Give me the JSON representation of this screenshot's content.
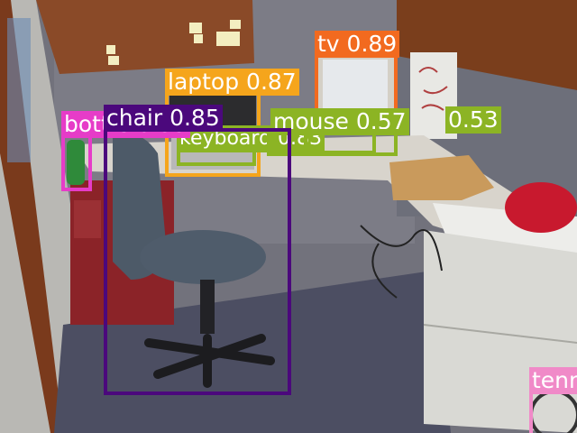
{
  "detections": [
    {
      "label": "tv 0.89",
      "color": "#f26a1f"
    },
    {
      "label": "laptop 0.87",
      "color": "#f5a51c"
    },
    {
      "label": "chair 0.85",
      "color": "#4b087c"
    },
    {
      "label": "keyboard 0.83",
      "color": "#8cb424"
    },
    {
      "label": "mouse 0.57",
      "color": "#8cb424"
    },
    {
      "label": "0.53",
      "color": "#8cb424"
    },
    {
      "label": "bottle 0.55",
      "color": "#e63cc8"
    },
    {
      "label": "tennis racket",
      "color": "#f08ac8"
    }
  ]
}
